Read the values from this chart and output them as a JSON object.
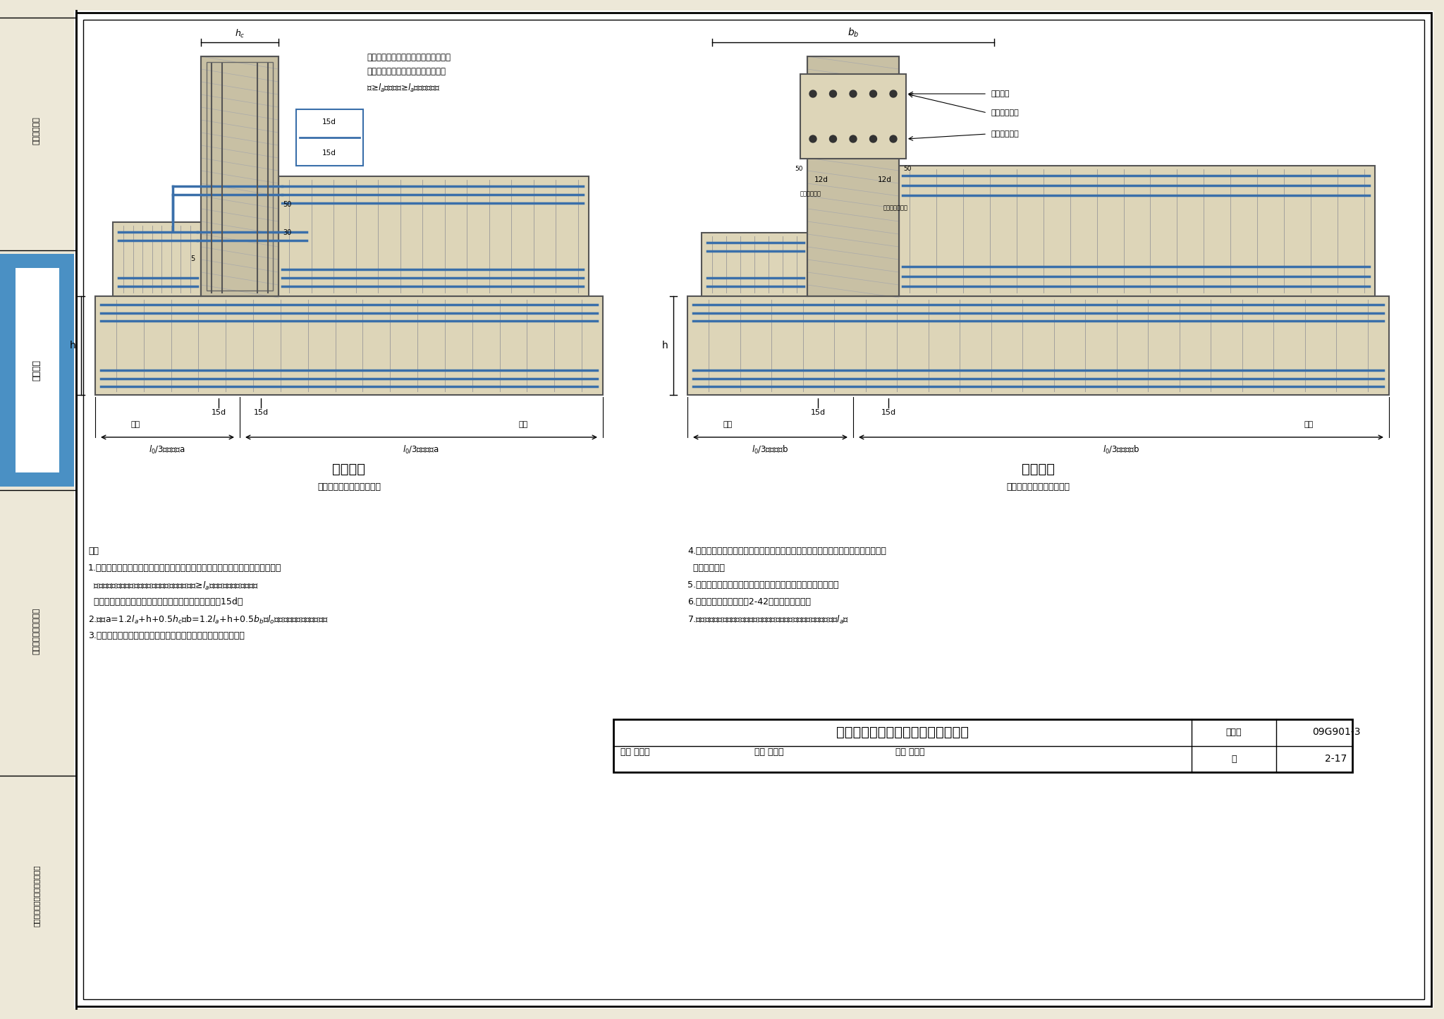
{
  "title": "支座两侧基础梁宽度不同时钢筋排布",
  "atlas_no": "09G901-3",
  "page": "2-17",
  "bg_color": "#ede8d8",
  "white_bg": "#ffffff",
  "concrete_fill": "#ddd5b8",
  "concrete_edge": "#555555",
  "steel_color": "#3a6faa",
  "column_fill": "#c8c0a4",
  "sidebar_blue": "#4a90c4",
  "diagram_left_title": "基础主梁",
  "diagram_left_subtitle": "支座右侧梁宽大于左侧梁宽",
  "diagram_right_title": "基础次梁",
  "diagram_right_subtitle": "支座右侧梁宽大于左侧梁宽"
}
